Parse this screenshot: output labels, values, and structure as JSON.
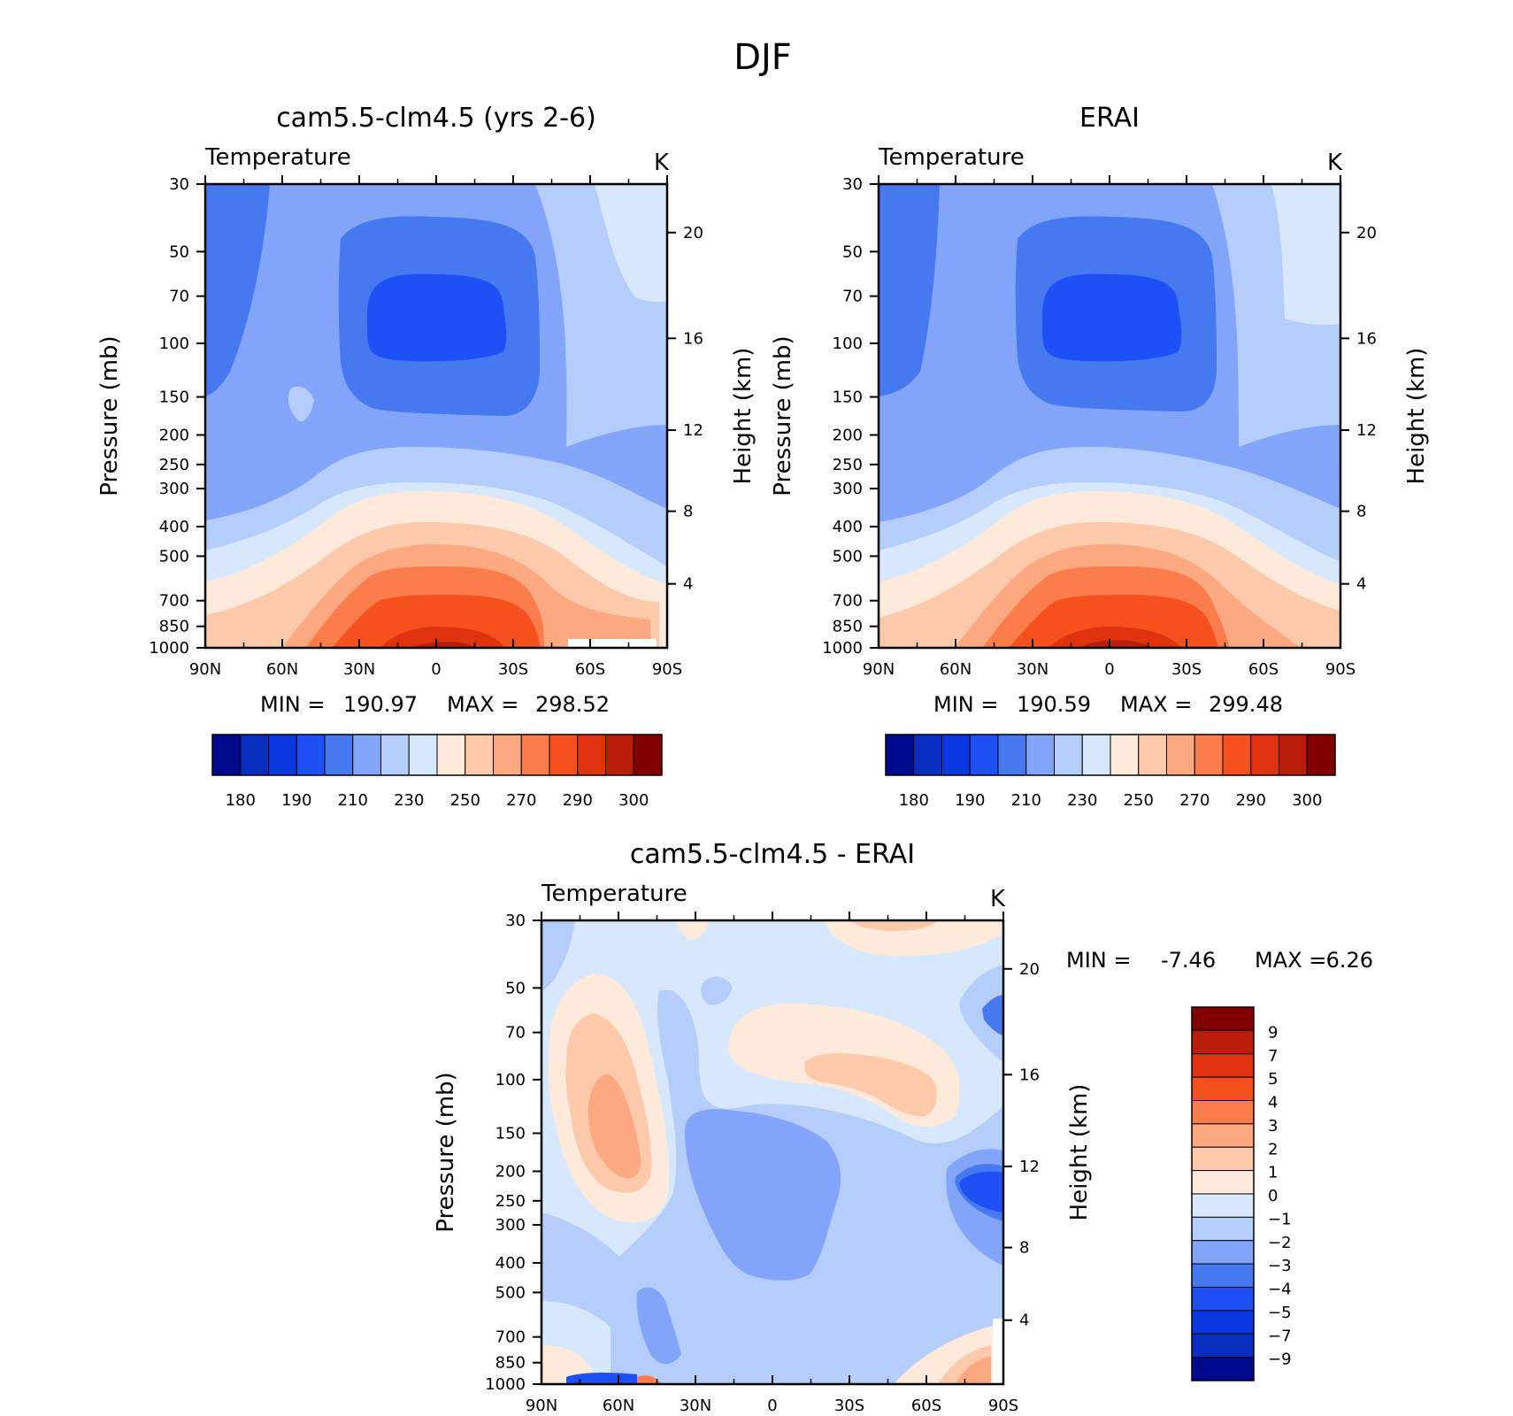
{
  "title": "DJF",
  "chart_data": [
    {
      "type": "heatmap",
      "title": "cam5.5-clm4.5 (yrs 2-6)",
      "variable": "Temperature",
      "units": "K",
      "ylabel": "Pressure (mb)",
      "y2label": "Height (km)",
      "x_ticklabels": [
        "90N",
        "60N",
        "30N",
        "0",
        "30S",
        "60S",
        "90S"
      ],
      "x_range": [
        90,
        -90
      ],
      "y_ticklabels": [
        30,
        50,
        70,
        100,
        150,
        200,
        250,
        300,
        400,
        500,
        700,
        850,
        1000
      ],
      "y_range": [
        30,
        1000
      ],
      "y_scale": "log",
      "y2_ticklabels": [
        4,
        8,
        12,
        16,
        20
      ],
      "min_label": "MIN =",
      "min": "190.97",
      "max_label": "MAX =",
      "max": "298.52",
      "colorbar_ticklabels": [
        180,
        190,
        210,
        230,
        250,
        270,
        290,
        300
      ],
      "grid": false
    },
    {
      "type": "heatmap",
      "title": "ERAI",
      "variable": "Temperature",
      "units": "K",
      "ylabel": "Pressure (mb)",
      "y2label": "Height (km)",
      "x_ticklabels": [
        "90N",
        "60N",
        "30N",
        "0",
        "30S",
        "60S",
        "90S"
      ],
      "x_range": [
        90,
        -90
      ],
      "y_ticklabels": [
        30,
        50,
        70,
        100,
        150,
        200,
        250,
        300,
        400,
        500,
        700,
        850,
        1000
      ],
      "y_range": [
        30,
        1000
      ],
      "y_scale": "log",
      "y2_ticklabels": [
        4,
        8,
        12,
        16,
        20
      ],
      "min_label": "MIN =",
      "min": "190.59",
      "max_label": "MAX =",
      "max": "299.48",
      "colorbar_ticklabels": [
        180,
        190,
        210,
        230,
        250,
        270,
        290,
        300
      ],
      "grid": false
    },
    {
      "type": "heatmap",
      "title": "cam5.5-clm4.5 - ERAI",
      "variable": "Temperature",
      "units": "K",
      "ylabel": "Pressure (mb)",
      "y2label": "Height (km)",
      "x_ticklabels": [
        "90N",
        "60N",
        "30N",
        "0",
        "30S",
        "60S",
        "90S"
      ],
      "x_range": [
        90,
        -90
      ],
      "y_ticklabels": [
        30,
        50,
        70,
        100,
        150,
        200,
        250,
        300,
        400,
        500,
        700,
        850,
        1000
      ],
      "y_range": [
        30,
        1000
      ],
      "y_scale": "log",
      "y2_ticklabels": [
        4,
        8,
        12,
        16,
        20
      ],
      "min_label": "MIN =",
      "min": "-7.46",
      "max_label": "MAX =",
      "max": "6.26",
      "colorbar_ticklabels": [
        "9",
        "7",
        "5",
        "4",
        "3",
        "2",
        "1",
        "0",
        "−1",
        "−2",
        "−3",
        "−4",
        "−5",
        "−7",
        "−9"
      ],
      "grid": false
    }
  ],
  "colors": {
    "abs_scale": [
      "#000a8c",
      "#0a2ebf",
      "#0a37e0",
      "#1e50f5",
      "#4678f0",
      "#82a5fa",
      "#b4cdfa",
      "#d7e8fc",
      "#fdeada",
      "#fcc9aa",
      "#fca881",
      "#fb7d4b",
      "#f5501e",
      "#e1320f",
      "#b91e0a",
      "#820000"
    ],
    "diff_scale": [
      "#820000",
      "#b91e0a",
      "#e1320f",
      "#f5501e",
      "#fb7d4b",
      "#fca881",
      "#fcc9aa",
      "#fdeada",
      "#d7e8fc",
      "#b4cdfa",
      "#82a5fa",
      "#4678f0",
      "#1e50f5",
      "#0a37e0",
      "#0a2ebf",
      "#000a8c"
    ]
  }
}
